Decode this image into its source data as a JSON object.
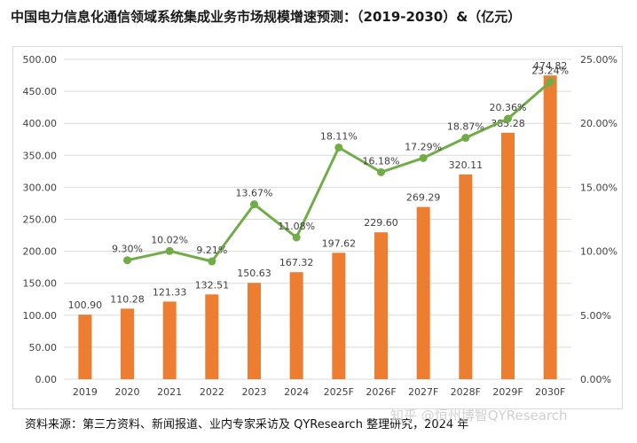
{
  "title": "中国电力信息化通信领域系统集成业务市场规模增速预测：（2019-2030）&（亿元）",
  "source": "资料来源：第三方资料、新闻报道、业内专家采访及 QYResearch 整理研究，2024 年",
  "watermark": "知乎 @恒州博智QYResearch",
  "colors": {
    "bar": "#ED7D31",
    "line": "#70AD47",
    "grid": "#d9d9d9",
    "text": "#404040"
  },
  "chart_data": {
    "type": "bar+line",
    "categories": [
      "2019",
      "2020",
      "2021",
      "2022",
      "2023",
      "2024",
      "2025F",
      "2026F",
      "2027F",
      "2028F",
      "2029F",
      "2030F"
    ],
    "series": [
      {
        "type": "bar",
        "axis": "left",
        "values": [
          100.9,
          110.28,
          121.33,
          132.51,
          150.63,
          167.32,
          197.62,
          229.6,
          269.29,
          320.11,
          385.28,
          474.82
        ],
        "labels": [
          "100.90",
          "110.28",
          "121.33",
          "132.51",
          "150.63",
          "167.32",
          "197.62",
          "229.60",
          "269.29",
          "320.11",
          "385.28",
          "474.82"
        ]
      },
      {
        "type": "line",
        "axis": "right",
        "values": [
          null,
          9.3,
          10.02,
          9.21,
          13.67,
          11.08,
          18.11,
          16.18,
          17.29,
          18.87,
          20.36,
          23.24
        ],
        "labels": [
          "",
          "9.30%",
          "10.02%",
          "9.21%",
          "13.67%",
          "11.08%",
          "18.11%",
          "16.18%",
          "17.29%",
          "18.87%",
          "20.36%",
          "23.24%"
        ]
      }
    ],
    "ylim_left": [
      0,
      500
    ],
    "yticks_left": [
      "0.00",
      "50.00",
      "100.00",
      "150.00",
      "200.00",
      "250.00",
      "300.00",
      "350.00",
      "400.00",
      "450.00",
      "500.00"
    ],
    "ylim_right": [
      0,
      25
    ],
    "yticks_right": [
      "0.00%",
      "5.00%",
      "10.00%",
      "15.00%",
      "20.00%",
      "25.00%"
    ],
    "grid": true
  }
}
